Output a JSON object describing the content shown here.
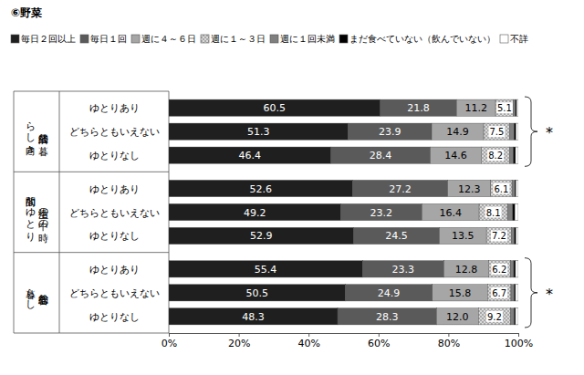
{
  "chart_data": {
    "type": "bar",
    "orientation": "horizontal",
    "stacked": true,
    "title": "⑥野菜",
    "legend": "top",
    "grid": false,
    "tick_labels": "x",
    "categories": [
      "ゆとりあり",
      "どちらともいえない",
      "ゆとりなし",
      "ゆとりあり",
      "どちらともいえない",
      "ゆとりなし",
      "ゆとりあり",
      "どちらともいえない",
      "ゆとりなし"
    ],
    "groups": [
      {
        "label": "経済的な暮らし向き",
        "annotation": "*"
      },
      {
        "label": "生活の中の時間的なゆとり"
      },
      {
        "label": "総合的な暮らし",
        "annotation": "*"
      }
    ],
    "xlim": [
      0,
      100
    ],
    "xticks": [
      {
        "value": 0,
        "label": "0%"
      },
      {
        "value": 20,
        "label": "20%"
      },
      {
        "value": 40,
        "label": "40%"
      },
      {
        "value": 60,
        "label": "60%"
      },
      {
        "value": 80,
        "label": "80%"
      },
      {
        "value": 100,
        "label": "100%"
      }
    ],
    "series": [
      {
        "name": "毎日２回以上",
        "color": "#1f1f1f",
        "data_labels": true,
        "values": [
          60.5,
          51.3,
          46.4,
          52.6,
          49.2,
          52.9,
          55.4,
          50.5,
          48.3
        ]
      },
      {
        "name": "毎日１回",
        "color": "#5a5a5a",
        "data_labels": true,
        "values": [
          21.8,
          23.9,
          28.4,
          27.2,
          23.2,
          24.5,
          23.3,
          24.9,
          28.3
        ]
      },
      {
        "name": "週に４～６日",
        "color": "#a6a6a6",
        "data_labels": true,
        "values": [
          11.2,
          14.9,
          14.6,
          12.3,
          16.4,
          13.5,
          12.8,
          15.8,
          12.0
        ],
        "value_labels": [
          "11.2",
          "14.9",
          "14.6",
          "12.3",
          "16.4",
          "13.5",
          "12.8",
          "15.8",
          "12.0"
        ]
      },
      {
        "name": "週に１～３日",
        "color": "#d9d9d9",
        "data_labels": true,
        "values": [
          5.1,
          7.5,
          8.2,
          6.1,
          8.1,
          7.2,
          6.2,
          6.7,
          9.2
        ]
      },
      {
        "name": "週に１回未満",
        "color": "#7f7f7f",
        "data_labels": false,
        "values": [
          0.6,
          1.2,
          1.0,
          0.8,
          1.5,
          0.8,
          1.0,
          0.9,
          1.0
        ]
      },
      {
        "name": "まだ食べていない（飲んでいない）",
        "color": "#000000",
        "data_labels": false,
        "values": [
          0.3,
          0.5,
          0.6,
          0.3,
          0.6,
          0.4,
          0.5,
          0.4,
          0.4
        ]
      },
      {
        "name": "不詳",
        "color": "#ffffff",
        "data_labels": false,
        "values": [
          0.5,
          0.7,
          0.8,
          0.7,
          1.0,
          0.7,
          0.8,
          0.8,
          0.8
        ]
      }
    ]
  }
}
